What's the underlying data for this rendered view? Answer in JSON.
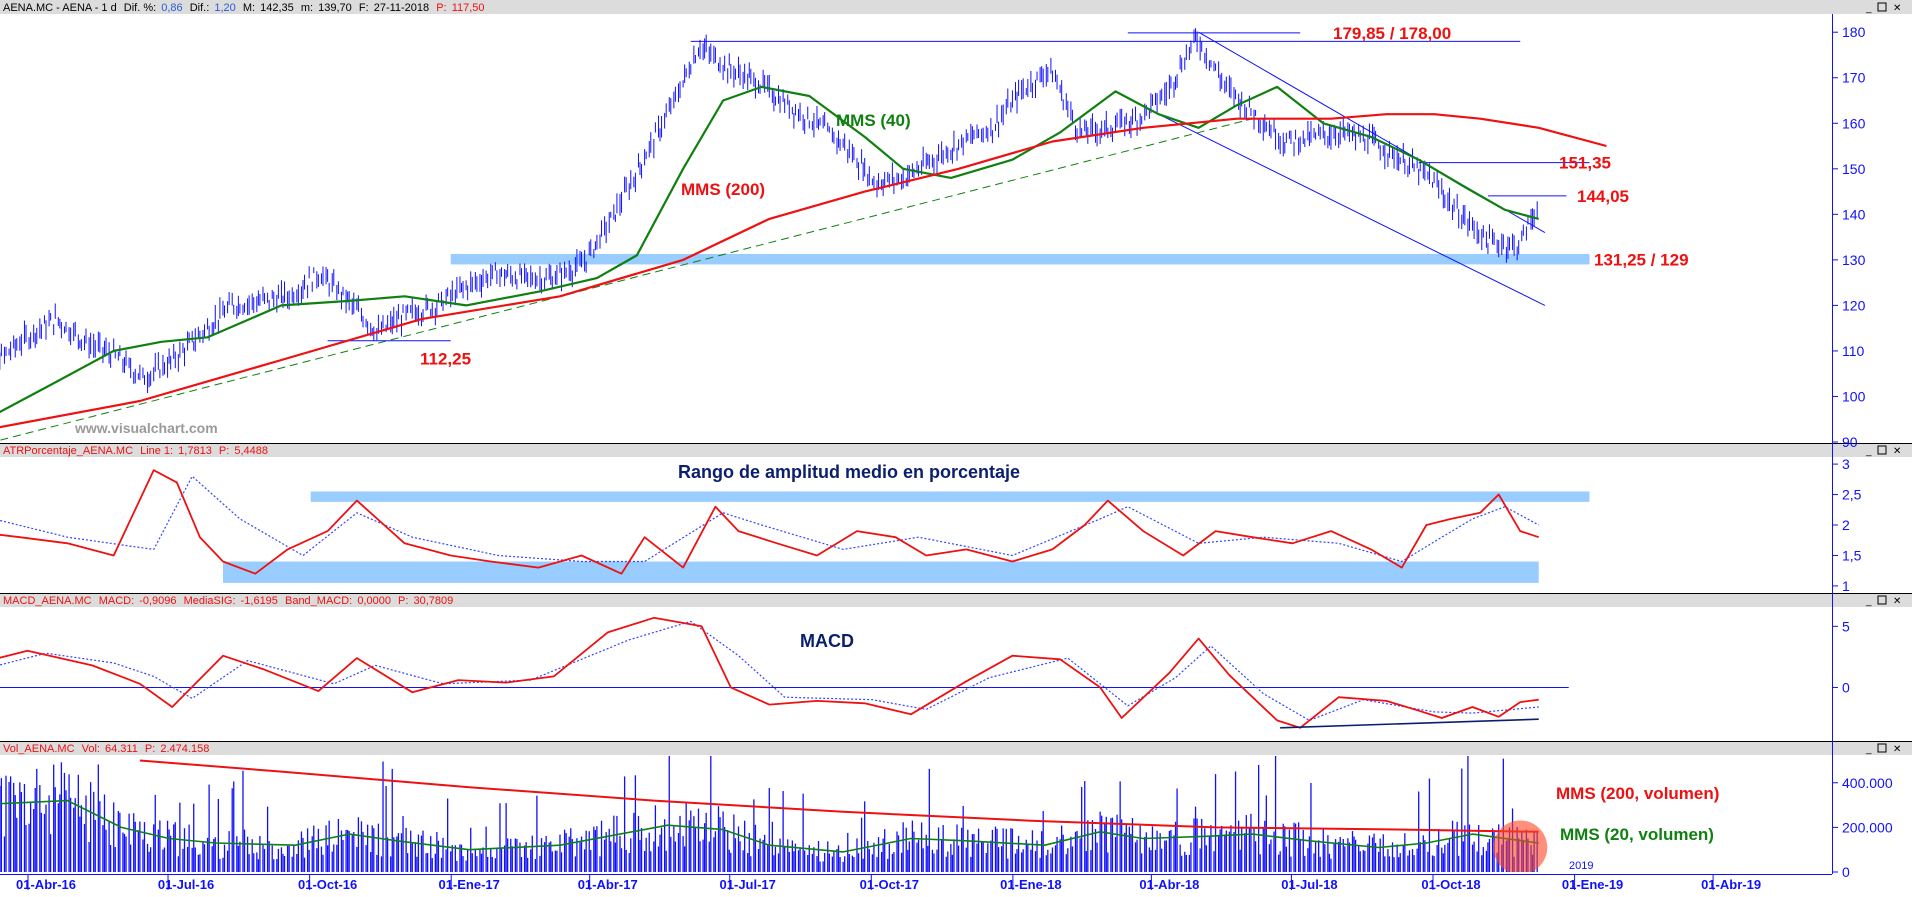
{
  "chart_data": [
    {
      "type": "line",
      "pane": "price",
      "header": {
        "symbol": "AENA.MC - AENA - 1 d",
        "dif_pct_label": "Dif. %:",
        "dif_pct": "0,86",
        "dif_label": "Dif.:",
        "dif": "1,20",
        "max_label": "M:",
        "max": "142,35",
        "min_label": "m:",
        "min": "139,70",
        "date_label": "F:",
        "date": "27-11-2018",
        "p_label": "P:",
        "p": "117,50"
      },
      "x_ticks": [
        "01-Abr-16",
        "01-Jul-16",
        "01-Oct-16",
        "01-Ene-17",
        "01-Abr-17",
        "01-Jul-17",
        "01-Oct-17",
        "01-Ene-18",
        "01-Abr-18",
        "01-Jul-18",
        "01-Oct-18",
        "01-Ene-19",
        "01-Abr-19"
      ],
      "year_marker": "2019",
      "ylim": [
        90,
        184
      ],
      "y_ticks": [
        "180",
        "170",
        "160",
        "150",
        "140",
        "130",
        "120",
        "110",
        "100",
        "90"
      ],
      "series": [
        {
          "name": "",
          "kind": "bars",
          "color": "#1010ff",
          "x": [
            "2016-02-11",
            "2016-03-01",
            "2016-03-20",
            "2016-04-08",
            "2016-04-27",
            "2016-05-16",
            "2016-06-04",
            "2016-06-23",
            "2016-07-12",
            "2016-07-31",
            "2016-08-19",
            "2016-09-07",
            "2016-09-26",
            "2016-10-15",
            "2016-11-03",
            "2016-11-22",
            "2016-12-11",
            "2016-12-30",
            "2017-01-18",
            "2017-02-06",
            "2017-02-25",
            "2017-03-16",
            "2017-04-04",
            "2017-04-23",
            "2017-05-12",
            "2017-05-31",
            "2017-06-19",
            "2017-07-08",
            "2017-07-27",
            "2017-08-15",
            "2017-09-03",
            "2017-09-22",
            "2017-10-11",
            "2017-10-30",
            "2017-11-18",
            "2017-12-07",
            "2017-12-26",
            "2018-01-14",
            "2018-02-02",
            "2018-02-21",
            "2018-03-12",
            "2018-03-31",
            "2018-04-19",
            "2018-05-08",
            "2018-05-27",
            "2018-06-15",
            "2018-07-04",
            "2018-07-23",
            "2018-08-11",
            "2018-08-30",
            "2018-09-18",
            "2018-10-07",
            "2018-10-26",
            "2018-11-14",
            "2018-11-27"
          ],
          "values": [
            102,
            108,
            113,
            117,
            112,
            109,
            104,
            108,
            114,
            120,
            121,
            122,
            127,
            121,
            114,
            118,
            120,
            124,
            127,
            126,
            126,
            129,
            139,
            151,
            163,
            177,
            172,
            169,
            164,
            160,
            155,
            147,
            148,
            152,
            156,
            159,
            167,
            172,
            158,
            159,
            161,
            167,
            179,
            168,
            162,
            156,
            157,
            158,
            156,
            152,
            148,
            140,
            134,
            133,
            142
          ]
        },
        {
          "name": "MMS (40)",
          "kind": "line",
          "color": "#108010",
          "x": [
            "2016-02-11",
            "2016-04-01",
            "2016-05-15",
            "2016-06-15",
            "2016-07-15",
            "2016-09-01",
            "2016-10-15",
            "2016-11-20",
            "2016-12-30",
            "2017-02-15",
            "2017-03-25",
            "2017-04-20",
            "2017-05-20",
            "2017-06-15",
            "2017-07-10",
            "2017-08-10",
            "2017-09-15",
            "2017-10-10",
            "2017-11-10",
            "2017-12-20",
            "2018-01-20",
            "2018-02-25",
            "2018-03-25",
            "2018-04-20",
            "2018-05-15",
            "2018-06-10",
            "2018-07-10",
            "2018-08-10",
            "2018-09-10",
            "2018-10-10",
            "2018-11-05",
            "2018-11-27"
          ],
          "values": [
            93,
            102,
            110,
            112,
            113,
            120,
            121,
            122,
            120,
            123,
            126,
            131,
            150,
            165,
            168,
            166,
            157,
            150,
            148,
            152,
            158,
            167,
            162,
            159,
            164,
            168,
            160,
            157,
            152,
            146,
            141,
            139
          ]
        },
        {
          "name": "MMS (200)",
          "kind": "line",
          "color": "#ee1111",
          "x": [
            "2016-02-11",
            "2016-06-01",
            "2016-09-01",
            "2016-12-01",
            "2017-03-01",
            "2017-05-20",
            "2017-07-15",
            "2017-09-15",
            "2017-11-15",
            "2018-01-15",
            "2018-03-15",
            "2018-05-15",
            "2018-07-15",
            "2018-08-20",
            "2018-09-20",
            "2018-10-20",
            "2018-11-27",
            "2019-01-10"
          ],
          "values": [
            92,
            99,
            108,
            117,
            122,
            130,
            139,
            145,
            150,
            156,
            159,
            161,
            161,
            162,
            162,
            161,
            159,
            155
          ]
        }
      ],
      "annotations": [
        {
          "text": "179,85 / 178,00",
          "level": 179.85
        },
        {
          "text": "151,35",
          "level": 151.35
        },
        {
          "text": "144,05",
          "level": 144.05
        },
        {
          "text": "131,25 / 129",
          "level": 130.1
        },
        {
          "text": "112,25",
          "level": 112.25
        }
      ],
      "watermark": "www.visualchart.com"
    },
    {
      "type": "line",
      "pane": "atr",
      "header": {
        "name": "ATRPorcentaje_AENA.MC",
        "line_label": "Line 1:",
        "line": "1,7813",
        "p_label": "P:",
        "p": "5,4488"
      },
      "title": "Rango de amplitud medio en porcentaje",
      "ylim": [
        0.9,
        3.1
      ],
      "y_ticks": [
        "3",
        "2,5",
        "2",
        "1,5",
        "1"
      ],
      "bands": [
        {
          "from": "2016-09-20",
          "to": "2018-12-30",
          "low": 2.38,
          "high": 2.55
        },
        {
          "from": "2016-07-25",
          "to": "2018-11-27",
          "low": 1.05,
          "high": 1.4
        }
      ],
      "series": [
        {
          "name": "",
          "color": "#ee1111",
          "x": [
            "2016-02-11",
            "2016-03-15",
            "2016-04-15",
            "2016-05-15",
            "2016-06-10",
            "2016-06-25",
            "2016-07-10",
            "2016-07-25",
            "2016-08-15",
            "2016-09-05",
            "2016-10-01",
            "2016-10-20",
            "2016-11-20",
            "2016-12-20",
            "2017-01-15",
            "2017-02-15",
            "2017-03-15",
            "2017-04-10",
            "2017-04-25",
            "2017-05-20",
            "2017-06-10",
            "2017-06-25",
            "2017-07-20",
            "2017-08-15",
            "2017-09-10",
            "2017-10-05",
            "2017-10-25",
            "2017-11-20",
            "2017-12-20",
            "2018-01-15",
            "2018-02-05",
            "2018-02-20",
            "2018-03-15",
            "2018-04-10",
            "2018-05-01",
            "2018-05-25",
            "2018-06-20",
            "2018-07-15",
            "2018-08-10",
            "2018-08-30",
            "2018-09-15",
            "2018-10-01",
            "2018-10-20",
            "2018-11-01",
            "2018-11-15",
            "2018-11-27"
          ],
          "values": [
            1.9,
            1.8,
            1.7,
            1.5,
            2.9,
            2.7,
            1.8,
            1.4,
            1.2,
            1.6,
            1.9,
            2.4,
            1.7,
            1.5,
            1.4,
            1.3,
            1.5,
            1.2,
            1.8,
            1.3,
            2.3,
            1.9,
            1.7,
            1.5,
            1.9,
            1.8,
            1.5,
            1.6,
            1.4,
            1.6,
            2.0,
            2.4,
            1.9,
            1.5,
            1.9,
            1.8,
            1.7,
            1.9,
            1.6,
            1.3,
            2.0,
            2.1,
            2.2,
            2.5,
            1.9,
            1.8
          ]
        },
        {
          "name": "",
          "color": "#3344ff",
          "dotted": true,
          "x": [
            "2016-02-11",
            "2016-04-15",
            "2016-06-10",
            "2016-07-05",
            "2016-08-05",
            "2016-09-15",
            "2016-10-20",
            "2016-11-25",
            "2017-01-20",
            "2017-03-15",
            "2017-04-25",
            "2017-06-15",
            "2017-07-10",
            "2017-09-01",
            "2017-10-20",
            "2017-12-20",
            "2018-02-15",
            "2018-03-05",
            "2018-04-20",
            "2018-06-01",
            "2018-07-20",
            "2018-08-30",
            "2018-09-25",
            "2018-10-15",
            "2018-11-05",
            "2018-11-27"
          ],
          "values": [
            2.2,
            1.8,
            1.6,
            2.8,
            2.1,
            1.5,
            2.2,
            1.8,
            1.5,
            1.4,
            1.4,
            2.2,
            2.0,
            1.6,
            1.8,
            1.5,
            2.1,
            2.3,
            1.7,
            1.8,
            1.7,
            1.4,
            1.8,
            2.1,
            2.3,
            2.0
          ]
        }
      ]
    },
    {
      "type": "line",
      "pane": "macd",
      "header": {
        "name": "MACD_AENA.MC",
        "macd_label": "MACD:",
        "macd": "-0,9096",
        "sig_label": "MediaSIG:",
        "sig": "-1,6195",
        "band_label": "Band_MACD:",
        "band": "0,0000",
        "p_label": "P:",
        "p": "30,7809"
      },
      "title": "MACD",
      "ylim": [
        -4.3,
        6.5
      ],
      "y_ticks": [
        "5",
        "0"
      ],
      "zero_line": 0,
      "support": {
        "from": "2018-06-12",
        "to": "2018-11-27",
        "y_from": -3.3,
        "y_to": -2.6
      },
      "series": [
        {
          "name": "",
          "color": "#ee1111",
          "x": [
            "2016-02-11",
            "2016-03-20",
            "2016-05-01",
            "2016-06-01",
            "2016-06-22",
            "2016-07-25",
            "2016-08-20",
            "2016-09-25",
            "2016-10-20",
            "2016-11-25",
            "2016-12-25",
            "2017-01-25",
            "2017-02-25",
            "2017-04-01",
            "2017-05-01",
            "2017-06-01",
            "2017-06-20",
            "2017-07-15",
            "2017-08-15",
            "2017-09-15",
            "2017-10-15",
            "2017-11-20",
            "2017-12-20",
            "2018-01-20",
            "2018-02-15",
            "2018-03-01",
            "2018-04-01",
            "2018-04-20",
            "2018-05-10",
            "2018-06-10",
            "2018-06-25",
            "2018-07-20",
            "2018-08-20",
            "2018-09-10",
            "2018-09-25",
            "2018-10-15",
            "2018-11-01",
            "2018-11-15",
            "2018-11-27"
          ],
          "values": [
            1.8,
            3.0,
            1.8,
            0.3,
            -1.6,
            2.6,
            1.5,
            -0.3,
            2.4,
            -0.4,
            0.6,
            0.4,
            0.9,
            4.5,
            5.7,
            5.0,
            0.0,
            -1.4,
            -1.1,
            -1.3,
            -2.2,
            0.5,
            2.6,
            2.3,
            0.0,
            -2.5,
            1.2,
            4.0,
            1.0,
            -2.7,
            -3.3,
            -0.8,
            -1.1,
            -1.9,
            -2.5,
            -1.6,
            -2.4,
            -1.2,
            -1.0
          ]
        },
        {
          "name": "",
          "color": "#3344ff",
          "dotted": true,
          "x": [
            "2016-02-11",
            "2016-04-01",
            "2016-05-15",
            "2016-06-10",
            "2016-07-05",
            "2016-08-10",
            "2016-10-05",
            "2016-11-01",
            "2016-12-15",
            "2017-02-10",
            "2017-04-15",
            "2017-05-25",
            "2017-06-25",
            "2017-07-25",
            "2017-09-20",
            "2017-10-25",
            "2017-12-05",
            "2018-01-25",
            "2018-03-05",
            "2018-04-05",
            "2018-04-28",
            "2018-06-01",
            "2018-07-01",
            "2018-08-05",
            "2018-09-20",
            "2018-10-15",
            "2018-11-27"
          ],
          "values": [
            1.2,
            2.8,
            2.0,
            0.9,
            -0.9,
            2.2,
            0.3,
            1.8,
            0.3,
            0.6,
            3.9,
            5.4,
            2.6,
            -0.8,
            -1.0,
            -1.8,
            0.8,
            2.4,
            -1.5,
            0.8,
            3.4,
            -0.5,
            -2.7,
            -1.0,
            -2.0,
            -2.1,
            -1.6
          ]
        }
      ]
    },
    {
      "type": "bar",
      "pane": "volume",
      "header": {
        "name": "Vol_AENA.MC",
        "vol_label": "Vol:",
        "vol": "64.311",
        "p_label": "P:",
        "p": "2.474.158"
      },
      "ylim": [
        0,
        520000
      ],
      "y_ticks": [
        "400.000",
        "200.000",
        "0"
      ],
      "bars_color": "#1010ff",
      "series": [
        {
          "name": "MMS (200, volumen)",
          "color": "#ee1111",
          "x": [
            "2016-06-01",
            "2016-09-01",
            "2017-01-01",
            "2017-05-01",
            "2017-09-01",
            "2018-01-01",
            "2018-05-01",
            "2018-09-01",
            "2018-11-27"
          ],
          "values": [
            500000,
            450000,
            380000,
            320000,
            270000,
            230000,
            200000,
            190000,
            180000
          ]
        },
        {
          "name": "MMS (20, volumen)",
          "color": "#108010",
          "x": [
            "2016-02-11",
            "2016-04-15",
            "2016-05-20",
            "2016-06-20",
            "2016-07-20",
            "2016-09-10",
            "2016-10-15",
            "2016-11-15",
            "2017-01-01",
            "2017-03-01",
            "2017-05-10",
            "2017-06-15",
            "2017-07-15",
            "2017-09-01",
            "2017-10-15",
            "2017-11-20",
            "2018-01-10",
            "2018-02-15",
            "2018-03-15",
            "2018-04-25",
            "2018-05-25",
            "2018-07-01",
            "2018-08-15",
            "2018-09-15",
            "2018-10-15",
            "2018-11-27"
          ],
          "values": [
            300000,
            320000,
            200000,
            150000,
            130000,
            120000,
            170000,
            140000,
            100000,
            120000,
            210000,
            190000,
            120000,
            90000,
            150000,
            140000,
            120000,
            180000,
            150000,
            160000,
            170000,
            140000,
            110000,
            130000,
            170000,
            130000
          ]
        }
      ],
      "annotations": [
        {
          "text": "MMS (200, volumen)"
        },
        {
          "text": "MMS (20, volumen)"
        }
      ]
    }
  ]
}
